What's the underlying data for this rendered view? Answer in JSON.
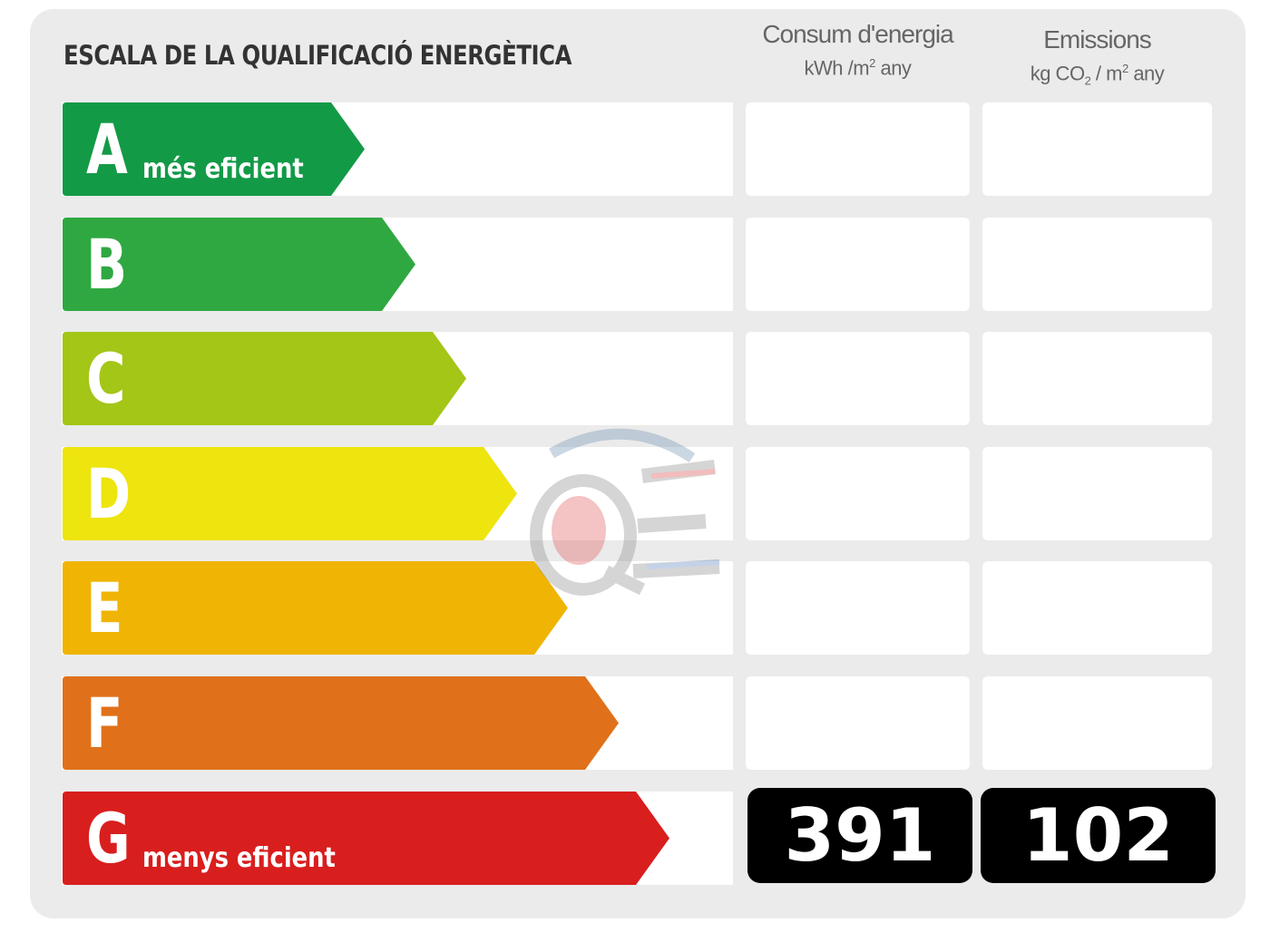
{
  "title": "ESCALA DE LA QUALIFICACIÓ ENERGÈTICA",
  "columns": {
    "energy": {
      "label": "Consum d'energia",
      "unit_pre": "kWh /m",
      "unit_sup": "2",
      "unit_post": " any"
    },
    "emissions": {
      "label": "Emissions",
      "unit_pre": "kg CO",
      "unit_sub": "2",
      "unit_mid": " / m",
      "unit_sup": "2",
      "unit_post": " any"
    }
  },
  "ratings": [
    {
      "letter": "A",
      "sublabel": "més eficient",
      "color": "#139a47"
    },
    {
      "letter": "B",
      "sublabel": "",
      "color": "#2fa842"
    },
    {
      "letter": "C",
      "sublabel": "",
      "color": "#a3c617"
    },
    {
      "letter": "D",
      "sublabel": "",
      "color": "#eee40e"
    },
    {
      "letter": "E",
      "sublabel": "",
      "color": "#f0b404"
    },
    {
      "letter": "F",
      "sublabel": "",
      "color": "#e0711a"
    },
    {
      "letter": "G",
      "sublabel": "menys eficient",
      "color": "#d91e1e"
    }
  ],
  "result": {
    "rating": "G",
    "energy_value": "391",
    "emissions_value": "102"
  },
  "watermark_text": "QE"
}
